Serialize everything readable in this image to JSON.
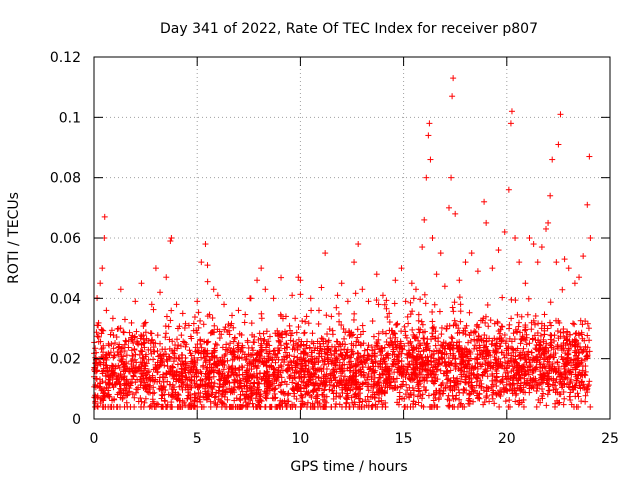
{
  "chart_data": {
    "type": "scatter",
    "title": "Day 341 of 2022, Rate Of TEC Index for receiver p807",
    "xlabel": "GPS time / hours",
    "ylabel": "ROTI / TECUs",
    "xlim": [
      0,
      25
    ],
    "ylim": [
      0,
      0.12
    ],
    "x_ticks": [
      0,
      5,
      10,
      15,
      20,
      25
    ],
    "x_tick_labels": [
      "0",
      "5",
      "10",
      "15",
      "20",
      "25"
    ],
    "y_ticks": [
      0,
      0.02,
      0.04,
      0.06,
      0.08,
      0.1,
      0.12
    ],
    "y_tick_labels": [
      "0",
      "0.02",
      "0.04",
      "0.06",
      "0.08",
      "0.1",
      "0.12"
    ],
    "grid": true,
    "marker": "+",
    "series": [
      {
        "name": "p807",
        "color": "#ff0000",
        "points": [
          [
            0.0,
            0.014
          ],
          [
            0.1,
            0.022
          ],
          [
            0.2,
            0.031
          ],
          [
            0.3,
            0.045
          ],
          [
            0.4,
            0.05
          ],
          [
            0.5,
            0.06
          ],
          [
            0.52,
            0.067
          ],
          [
            0.6,
            0.036
          ],
          [
            0.8,
            0.028
          ],
          [
            1.0,
            0.021
          ],
          [
            1.2,
            0.03
          ],
          [
            1.3,
            0.043
          ],
          [
            1.5,
            0.033
          ],
          [
            1.8,
            0.027
          ],
          [
            2.0,
            0.039
          ],
          [
            2.3,
            0.045
          ],
          [
            2.5,
            0.032
          ],
          [
            2.8,
            0.038
          ],
          [
            3.0,
            0.05
          ],
          [
            3.2,
            0.042
          ],
          [
            3.5,
            0.047
          ],
          [
            3.7,
            0.059
          ],
          [
            3.75,
            0.06
          ],
          [
            4.0,
            0.038
          ],
          [
            4.3,
            0.035
          ],
          [
            4.6,
            0.031
          ],
          [
            5.0,
            0.039
          ],
          [
            5.2,
            0.052
          ],
          [
            5.4,
            0.058
          ],
          [
            5.5,
            0.051
          ],
          [
            5.8,
            0.043
          ],
          [
            6.0,
            0.041
          ],
          [
            6.3,
            0.038
          ],
          [
            6.6,
            0.031
          ],
          [
            7.0,
            0.036
          ],
          [
            7.3,
            0.032
          ],
          [
            7.6,
            0.04
          ],
          [
            7.9,
            0.046
          ],
          [
            8.1,
            0.05
          ],
          [
            8.3,
            0.043
          ],
          [
            8.7,
            0.04
          ],
          [
            9.0,
            0.028
          ],
          [
            9.3,
            0.034
          ],
          [
            9.6,
            0.041
          ],
          [
            9.9,
            0.047
          ],
          [
            10.0,
            0.046
          ],
          [
            10.3,
            0.034
          ],
          [
            10.5,
            0.04
          ],
          [
            10.9,
            0.036
          ],
          [
            11.2,
            0.055
          ],
          [
            11.5,
            0.034
          ],
          [
            11.8,
            0.041
          ],
          [
            12.0,
            0.045
          ],
          [
            12.3,
            0.039
          ],
          [
            12.6,
            0.052
          ],
          [
            12.8,
            0.058
          ],
          [
            13.0,
            0.043
          ],
          [
            13.3,
            0.039
          ],
          [
            13.7,
            0.048
          ],
          [
            14.0,
            0.041
          ],
          [
            14.3,
            0.035
          ],
          [
            14.6,
            0.046
          ],
          [
            14.9,
            0.05
          ],
          [
            15.1,
            0.039
          ],
          [
            15.4,
            0.045
          ],
          [
            15.6,
            0.043
          ],
          [
            15.9,
            0.057
          ],
          [
            16.0,
            0.066
          ],
          [
            16.1,
            0.08
          ],
          [
            16.2,
            0.094
          ],
          [
            16.25,
            0.098
          ],
          [
            16.3,
            0.086
          ],
          [
            16.4,
            0.06
          ],
          [
            16.6,
            0.048
          ],
          [
            16.8,
            0.055
          ],
          [
            17.0,
            0.044
          ],
          [
            17.2,
            0.07
          ],
          [
            17.3,
            0.08
          ],
          [
            17.35,
            0.107
          ],
          [
            17.4,
            0.113
          ],
          [
            17.5,
            0.068
          ],
          [
            17.7,
            0.046
          ],
          [
            18.0,
            0.052
          ],
          [
            18.3,
            0.055
          ],
          [
            18.6,
            0.049
          ],
          [
            18.9,
            0.072
          ],
          [
            19.0,
            0.065
          ],
          [
            19.3,
            0.05
          ],
          [
            19.6,
            0.056
          ],
          [
            19.9,
            0.062
          ],
          [
            20.1,
            0.076
          ],
          [
            20.2,
            0.098
          ],
          [
            20.25,
            0.102
          ],
          [
            20.4,
            0.06
          ],
          [
            20.6,
            0.052
          ],
          [
            20.9,
            0.045
          ],
          [
            21.1,
            0.06
          ],
          [
            21.3,
            0.058
          ],
          [
            21.5,
            0.052
          ],
          [
            21.7,
            0.057
          ],
          [
            21.9,
            0.063
          ],
          [
            22.0,
            0.065
          ],
          [
            22.1,
            0.074
          ],
          [
            22.2,
            0.086
          ],
          [
            22.4,
            0.052
          ],
          [
            22.5,
            0.091
          ],
          [
            22.6,
            0.101
          ],
          [
            22.8,
            0.053
          ],
          [
            23.0,
            0.05
          ],
          [
            23.3,
            0.045
          ],
          [
            23.5,
            0.047
          ],
          [
            23.7,
            0.054
          ],
          [
            23.9,
            0.071
          ],
          [
            24.0,
            0.087
          ],
          [
            24.05,
            0.06
          ]
        ]
      }
    ]
  }
}
